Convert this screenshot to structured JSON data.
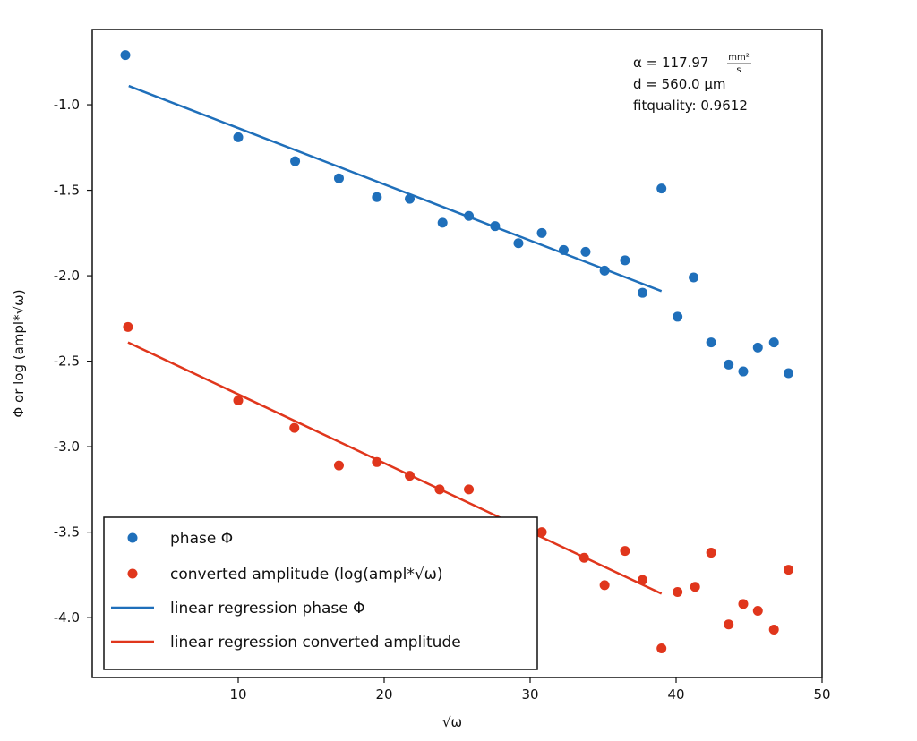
{
  "chart_data": {
    "type": "scatter",
    "xlabel": "√ω",
    "ylabel": "Φ or log (ampl*√ω)",
    "xlim": [
      0,
      50
    ],
    "ylim": [
      -4.35,
      -0.56
    ],
    "xticks": [
      10,
      20,
      30,
      40,
      50
    ],
    "yticks": [
      -1.0,
      -1.5,
      -2.0,
      -2.5,
      -3.0,
      -3.5,
      -4.0
    ],
    "xtick_labels": [
      "10",
      "20",
      "30",
      "40",
      "50"
    ],
    "ytick_labels": [
      "-1.0",
      "-1.5",
      "-2.0",
      "-2.5",
      "-3.0",
      "-3.5",
      "-4.0"
    ],
    "grid": false,
    "legend_placement": "bottom-left",
    "annotation": {
      "alpha": "α = 117.97",
      "alpha_unit_num": "mm²",
      "alpha_unit_den": "s",
      "d": "d = 560.0 µm",
      "fitquality": "fitquality: 0.9612"
    },
    "series": [
      {
        "name": "phase Φ",
        "kind": "scatter",
        "color": "#1f6fba",
        "x": [
          2.27,
          10.0,
          13.9,
          16.9,
          19.5,
          21.75,
          24.0,
          25.8,
          27.6,
          29.2,
          30.8,
          32.3,
          33.8,
          35.1,
          36.5,
          37.7,
          39.0,
          40.1,
          41.2,
          42.4,
          43.6,
          44.6,
          45.6,
          46.7,
          47.7
        ],
        "y": [
          -0.71,
          -1.19,
          -1.33,
          -1.43,
          -1.54,
          -1.55,
          -1.69,
          -1.65,
          -1.71,
          -1.81,
          -1.75,
          -1.85,
          -1.86,
          -1.97,
          -1.91,
          -2.1,
          -1.49,
          -2.24,
          -2.01,
          -2.39,
          -2.52,
          -2.56,
          -2.42,
          -2.39,
          -2.57
        ]
      },
      {
        "name": "converted amplitude (log(ampl*√ω)",
        "kind": "scatter",
        "color": "#e0361c",
        "x": [
          2.45,
          10.0,
          13.85,
          16.9,
          19.5,
          21.75,
          23.8,
          25.8,
          27.6,
          29.1,
          30.8,
          33.7,
          35.1,
          36.5,
          37.7,
          39.0,
          40.1,
          41.3,
          42.4,
          43.6,
          44.6,
          45.6,
          46.7,
          47.7
        ],
        "y": [
          -2.3,
          -2.73,
          -2.89,
          -3.11,
          -3.09,
          -3.17,
          -3.25,
          -3.25,
          -3.5,
          -3.47,
          -3.5,
          -3.65,
          -3.81,
          -3.61,
          -3.78,
          -4.18,
          -3.85,
          -3.82,
          -3.62,
          -4.04,
          -3.92,
          -3.96,
          -4.07,
          -3.72
        ]
      },
      {
        "name": "linear regression phase Φ",
        "kind": "line",
        "color": "#1f6fba",
        "x": [
          2.5,
          39.0
        ],
        "y": [
          -0.89,
          -2.09
        ]
      },
      {
        "name": "linear regression converted amplitude",
        "kind": "line",
        "color": "#e0361c",
        "x": [
          2.45,
          39.0
        ],
        "y": [
          -2.39,
          -3.86
        ]
      }
    ]
  }
}
